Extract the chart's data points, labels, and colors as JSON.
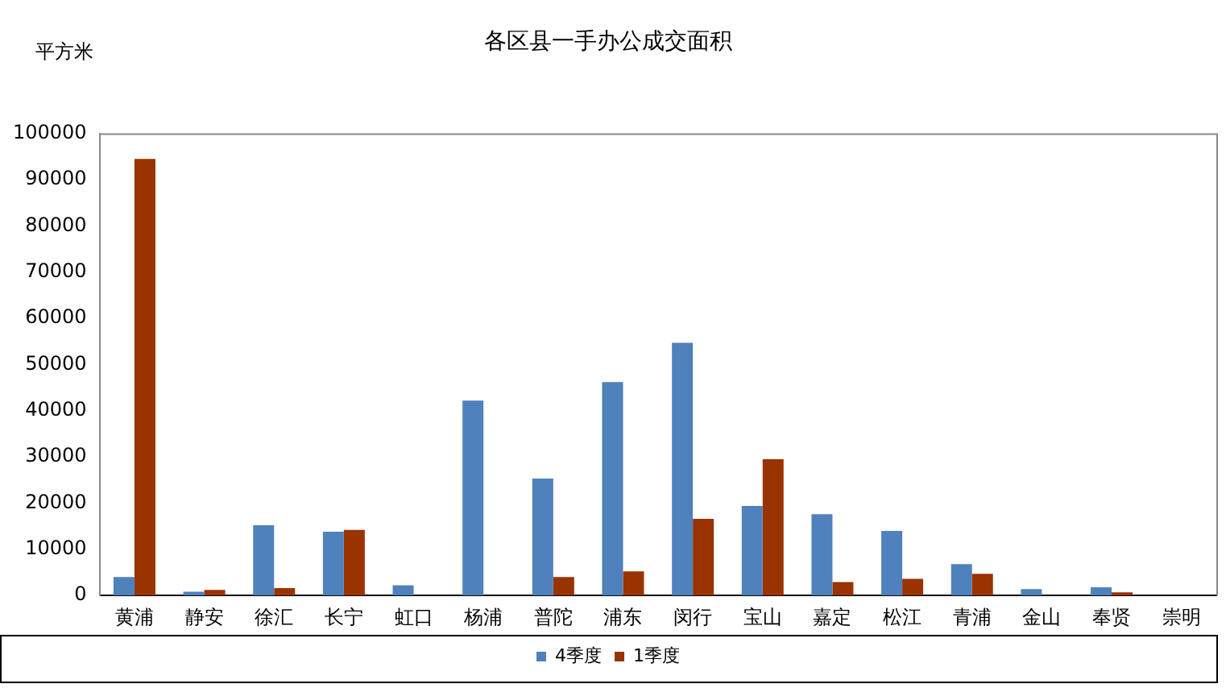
{
  "chart_data": {
    "type": "bar",
    "title": "各区县一手办公成交面积",
    "ylabel": "平方米",
    "categories": [
      "黄浦",
      "静安",
      "徐汇",
      "长宁",
      "虹口",
      "杨浦",
      "普陀",
      "浦东",
      "闵行",
      "宝山",
      "嘉定",
      "松江",
      "青浦",
      "金山",
      "奉贤",
      "崇明"
    ],
    "series": [
      {
        "name": "4季度",
        "color": "#4f81bd",
        "values": [
          4000,
          800,
          15200,
          13800,
          2200,
          42200,
          25300,
          46200,
          54700,
          19400,
          17600,
          14000,
          6800,
          1400,
          1800,
          0
        ]
      },
      {
        "name": "1季度",
        "color": "#993300",
        "values": [
          94500,
          1200,
          1600,
          14200,
          0,
          0,
          4000,
          5200,
          16600,
          29500,
          2900,
          3600,
          4700,
          0,
          700,
          0
        ]
      }
    ],
    "ylim": [
      0,
      100000
    ],
    "yticks": [
      0,
      10000,
      20000,
      30000,
      40000,
      50000,
      60000,
      70000,
      80000,
      90000,
      100000
    ],
    "grid": false,
    "legend": "bottom"
  }
}
